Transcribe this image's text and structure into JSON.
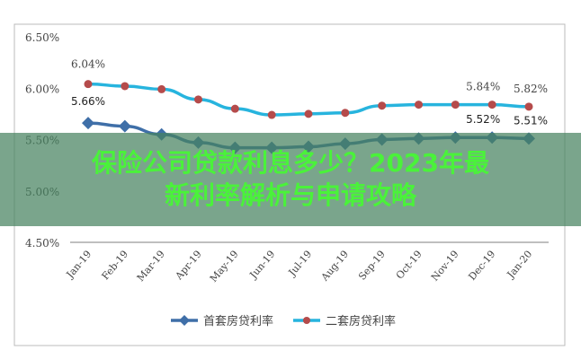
{
  "chart_data": {
    "type": "line",
    "title": "",
    "xlabel": "",
    "ylabel": "",
    "categories": [
      "Jan-19",
      "Feb-19",
      "Mar-19",
      "Apr-19",
      "May-19",
      "Jun-19",
      "Jul-19",
      "Aug-19",
      "Sep-19",
      "Oct-19",
      "Nov-19",
      "Dec-19",
      "Jan-20"
    ],
    "yticks": [
      "6.50%",
      "6.00%",
      "5.50%",
      "5.00%",
      "4.50%"
    ],
    "ylim": [
      4.5,
      6.5
    ],
    "grid": false,
    "legend_position": "bottom",
    "series": [
      {
        "name": "首套房贷利率",
        "color": "#3f6fa8",
        "marker": "diamond",
        "values": [
          5.66,
          5.63,
          5.55,
          5.47,
          5.42,
          5.42,
          5.43,
          5.46,
          5.5,
          5.51,
          5.52,
          5.52,
          5.51
        ]
      },
      {
        "name": "二套房贷利率",
        "color": "#27b4de",
        "marker": "circle",
        "marker_color": "#b54b4b",
        "values": [
          6.04,
          6.02,
          5.99,
          5.89,
          5.8,
          5.74,
          5.75,
          5.76,
          5.83,
          5.84,
          5.84,
          5.84,
          5.82
        ]
      }
    ],
    "annotations": [
      {
        "text": "6.04%",
        "series": 1,
        "index": 0
      },
      {
        "text": "5.66%",
        "series": 0,
        "index": 0
      },
      {
        "text": "5.84%",
        "series": 1,
        "index": 11
      },
      {
        "text": "5.82%",
        "series": 1,
        "index": 12
      },
      {
        "text": "5.52%",
        "series": 0,
        "index": 11
      },
      {
        "text": "5.51%",
        "series": 0,
        "index": 12
      }
    ]
  },
  "banner": {
    "title": "保险公司贷款利息多少？2023年最新利率解析与申请攻略"
  }
}
